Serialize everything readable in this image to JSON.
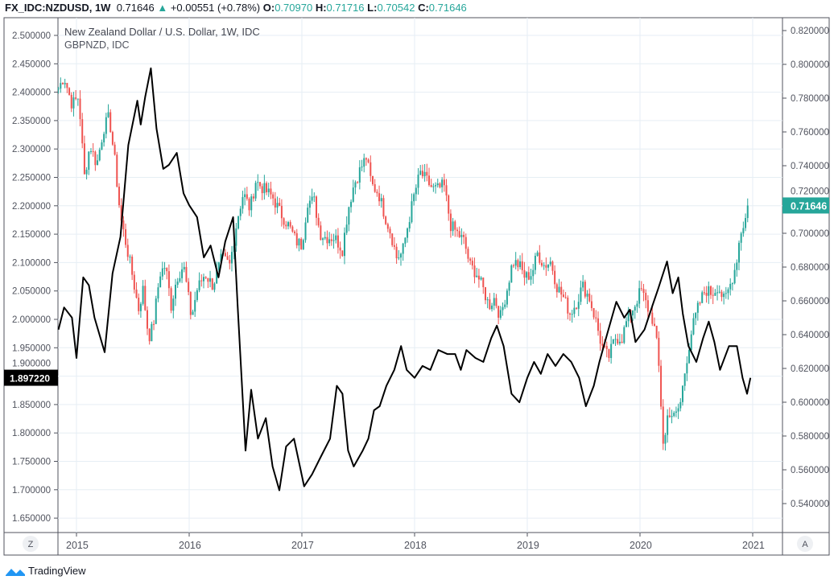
{
  "header": {
    "symbol": "FX_IDC:NZDUSD, 1W",
    "last": "0.71646",
    "change": "+0.00551 (+0.78%)",
    "o_label": "O:",
    "o": "0.70970",
    "h_label": "H:",
    "h": "0.71716",
    "l_label": "L:",
    "l": "0.70542",
    "c_label": "C:",
    "c": "0.71646"
  },
  "legend": {
    "main": "New Zealand Dollar / U.S. Dollar, 1W, IDC",
    "overlay": "GBPNZD, IDC"
  },
  "footer": {
    "brand": "TradingView",
    "z_button": "Z",
    "a_button": "A"
  },
  "colors": {
    "up": "#26a69a",
    "down": "#ef5350",
    "overlay_line": "#000000",
    "grid": "#e6eef4"
  },
  "chart_data": {
    "type": "candlestick+line",
    "x_ticks": [
      "2015",
      "2016",
      "2017",
      "2018",
      "2019",
      "2020",
      "2021"
    ],
    "left_axis": {
      "series": "GBPNZD",
      "range": [
        1.62,
        2.53
      ],
      "ticks": [
        "2.500000",
        "2.450000",
        "2.400000",
        "2.350000",
        "2.300000",
        "2.250000",
        "2.200000",
        "2.150000",
        "2.100000",
        "2.050000",
        "2.000000",
        "1.950000",
        "1.900000",
        "1.850000",
        "1.800000",
        "1.750000",
        "1.700000",
        "1.650000"
      ],
      "last_label": "1.897220",
      "last_value": 1.89722
    },
    "right_axis": {
      "series": "NZDUSD",
      "range": [
        0.532,
        0.826
      ],
      "ticks": [
        "0.820000",
        "0.800000",
        "0.780000",
        "0.760000",
        "0.740000",
        "0.720000",
        "0.700000",
        "0.680000",
        "0.660000",
        "0.640000",
        "0.620000",
        "0.600000",
        "0.580000",
        "0.560000",
        "0.540000"
      ],
      "last_label": "0.71646",
      "last_value": 0.71646
    },
    "gbpnzd": [
      [
        2014.84,
        1.982
      ],
      [
        2014.89,
        2.021
      ],
      [
        2014.96,
        2.003
      ],
      [
        2015.0,
        1.932
      ],
      [
        2015.06,
        2.074
      ],
      [
        2015.11,
        2.06
      ],
      [
        2015.16,
        2.003
      ],
      [
        2015.25,
        1.942
      ],
      [
        2015.32,
        2.081
      ],
      [
        2015.39,
        2.145
      ],
      [
        2015.46,
        2.307
      ],
      [
        2015.54,
        2.385
      ],
      [
        2015.57,
        2.343
      ],
      [
        2015.61,
        2.392
      ],
      [
        2015.66,
        2.442
      ],
      [
        2015.71,
        2.336
      ],
      [
        2015.77,
        2.265
      ],
      [
        2015.82,
        2.272
      ],
      [
        2015.89,
        2.293
      ],
      [
        2015.95,
        2.222
      ],
      [
        2016.0,
        2.201
      ],
      [
        2016.07,
        2.18
      ],
      [
        2016.13,
        2.109
      ],
      [
        2016.19,
        2.13
      ],
      [
        2016.26,
        2.074
      ],
      [
        2016.32,
        2.137
      ],
      [
        2016.39,
        2.18
      ],
      [
        2016.43,
        2.024
      ],
      [
        2016.5,
        1.769
      ],
      [
        2016.55,
        1.876
      ],
      [
        2016.61,
        1.79
      ],
      [
        2016.68,
        1.826
      ],
      [
        2016.74,
        1.741
      ],
      [
        2016.8,
        1.699
      ],
      [
        2016.86,
        1.776
      ],
      [
        2016.93,
        1.79
      ],
      [
        2016.96,
        1.762
      ],
      [
        2017.02,
        1.706
      ],
      [
        2017.09,
        1.727
      ],
      [
        2017.16,
        1.755
      ],
      [
        2017.25,
        1.79
      ],
      [
        2017.31,
        1.883
      ],
      [
        2017.36,
        1.869
      ],
      [
        2017.41,
        1.769
      ],
      [
        2017.46,
        1.741
      ],
      [
        2017.54,
        1.769
      ],
      [
        2017.59,
        1.79
      ],
      [
        2017.64,
        1.84
      ],
      [
        2017.69,
        1.847
      ],
      [
        2017.75,
        1.883
      ],
      [
        2017.82,
        1.911
      ],
      [
        2017.88,
        1.953
      ],
      [
        2017.93,
        1.911
      ],
      [
        2018.0,
        1.897
      ],
      [
        2018.07,
        1.918
      ],
      [
        2018.14,
        1.911
      ],
      [
        2018.21,
        1.946
      ],
      [
        2018.29,
        1.939
      ],
      [
        2018.36,
        1.939
      ],
      [
        2018.41,
        1.911
      ],
      [
        2018.46,
        1.946
      ],
      [
        2018.54,
        1.932
      ],
      [
        2018.61,
        1.925
      ],
      [
        2018.68,
        1.967
      ],
      [
        2018.73,
        1.989
      ],
      [
        2018.79,
        1.953
      ],
      [
        2018.86,
        1.869
      ],
      [
        2018.93,
        1.854
      ],
      [
        2019.0,
        1.897
      ],
      [
        2019.06,
        1.925
      ],
      [
        2019.12,
        1.904
      ],
      [
        2019.18,
        1.939
      ],
      [
        2019.25,
        1.918
      ],
      [
        2019.32,
        1.939
      ],
      [
        2019.39,
        1.925
      ],
      [
        2019.46,
        1.897
      ],
      [
        2019.52,
        1.847
      ],
      [
        2019.59,
        1.883
      ],
      [
        2019.64,
        1.925
      ],
      [
        2019.71,
        1.975
      ],
      [
        2019.79,
        2.031
      ],
      [
        2019.86,
        2.003
      ],
      [
        2019.91,
        2.017
      ],
      [
        2019.96,
        1.96
      ],
      [
        2020.04,
        1.982
      ],
      [
        2020.11,
        2.024
      ],
      [
        2020.16,
        2.053
      ],
      [
        2020.24,
        2.102
      ],
      [
        2020.29,
        2.046
      ],
      [
        2020.34,
        2.074
      ],
      [
        2020.38,
        2.01
      ],
      [
        2020.43,
        1.953
      ],
      [
        2020.5,
        1.925
      ],
      [
        2020.56,
        1.967
      ],
      [
        2020.61,
        1.996
      ],
      [
        2020.66,
        1.96
      ],
      [
        2020.71,
        1.911
      ],
      [
        2020.79,
        1.953
      ],
      [
        2020.86,
        1.953
      ],
      [
        2020.91,
        1.897
      ],
      [
        2020.95,
        1.869
      ],
      [
        2020.98,
        1.897
      ]
    ],
    "nzdusd_close": [
      [
        2014.84,
        0.7857
      ],
      [
        2014.89,
        0.7929
      ],
      [
        2014.96,
        0.7762
      ],
      [
        2015.02,
        0.781
      ],
      [
        2015.07,
        0.7334
      ],
      [
        2015.12,
        0.7524
      ],
      [
        2015.18,
        0.7405
      ],
      [
        2015.24,
        0.7619
      ],
      [
        2015.29,
        0.769
      ],
      [
        2015.34,
        0.7429
      ],
      [
        2015.39,
        0.7096
      ],
      [
        2015.45,
        0.6905
      ],
      [
        2015.5,
        0.6738
      ],
      [
        2015.55,
        0.6548
      ],
      [
        2015.59,
        0.6667
      ],
      [
        2015.64,
        0.6381
      ],
      [
        2015.68,
        0.6452
      ],
      [
        2015.74,
        0.6762
      ],
      [
        2015.79,
        0.681
      ],
      [
        2015.84,
        0.6571
      ],
      [
        2015.89,
        0.6738
      ],
      [
        2015.95,
        0.681
      ],
      [
        2016.02,
        0.65
      ],
      [
        2016.07,
        0.6667
      ],
      [
        2016.14,
        0.6762
      ],
      [
        2016.21,
        0.669
      ],
      [
        2016.29,
        0.6857
      ],
      [
        2016.36,
        0.681
      ],
      [
        2016.43,
        0.7096
      ],
      [
        2016.48,
        0.7238
      ],
      [
        2016.54,
        0.7143
      ],
      [
        2016.59,
        0.731
      ],
      [
        2016.66,
        0.7262
      ],
      [
        2016.74,
        0.7214
      ],
      [
        2016.81,
        0.7119
      ],
      [
        2016.88,
        0.7048
      ],
      [
        2016.95,
        0.6952
      ],
      [
        2017.0,
        0.6929
      ],
      [
        2017.05,
        0.719
      ],
      [
        2017.11,
        0.719
      ],
      [
        2017.16,
        0.7
      ],
      [
        2017.21,
        0.6976
      ],
      [
        2017.29,
        0.6976
      ],
      [
        2017.36,
        0.6905
      ],
      [
        2017.41,
        0.7143
      ],
      [
        2017.46,
        0.7286
      ],
      [
        2017.52,
        0.7381
      ],
      [
        2017.57,
        0.7452
      ],
      [
        2017.62,
        0.7286
      ],
      [
        2017.68,
        0.7238
      ],
      [
        2017.74,
        0.7096
      ],
      [
        2017.79,
        0.7
      ],
      [
        2017.84,
        0.6857
      ],
      [
        2017.89,
        0.6881
      ],
      [
        2017.94,
        0.7048
      ],
      [
        2018.0,
        0.7238
      ],
      [
        2018.05,
        0.7357
      ],
      [
        2018.11,
        0.731
      ],
      [
        2018.16,
        0.7262
      ],
      [
        2018.21,
        0.7262
      ],
      [
        2018.26,
        0.7286
      ],
      [
        2018.32,
        0.7048
      ],
      [
        2018.38,
        0.7
      ],
      [
        2018.44,
        0.6952
      ],
      [
        2018.49,
        0.681
      ],
      [
        2018.55,
        0.6762
      ],
      [
        2018.61,
        0.6667
      ],
      [
        2018.66,
        0.6571
      ],
      [
        2018.71,
        0.6619
      ],
      [
        2018.76,
        0.65
      ],
      [
        2018.82,
        0.6667
      ],
      [
        2018.87,
        0.6833
      ],
      [
        2018.93,
        0.681
      ],
      [
        2018.98,
        0.6738
      ],
      [
        2019.04,
        0.6762
      ],
      [
        2019.09,
        0.6881
      ],
      [
        2019.15,
        0.681
      ],
      [
        2019.21,
        0.6833
      ],
      [
        2019.26,
        0.669
      ],
      [
        2019.32,
        0.6619
      ],
      [
        2019.38,
        0.6524
      ],
      [
        2019.44,
        0.6595
      ],
      [
        2019.49,
        0.669
      ],
      [
        2019.55,
        0.6619
      ],
      [
        2019.61,
        0.6476
      ],
      [
        2019.66,
        0.6333
      ],
      [
        2019.72,
        0.6262
      ],
      [
        2019.78,
        0.6381
      ],
      [
        2019.84,
        0.6381
      ],
      [
        2019.89,
        0.65
      ],
      [
        2019.95,
        0.6571
      ],
      [
        2020.01,
        0.6667
      ],
      [
        2020.06,
        0.6571
      ],
      [
        2020.12,
        0.6476
      ],
      [
        2020.16,
        0.6286
      ],
      [
        2020.21,
        0.5715
      ],
      [
        2020.25,
        0.5953
      ],
      [
        2020.31,
        0.5905
      ],
      [
        2020.36,
        0.6
      ],
      [
        2020.41,
        0.6238
      ],
      [
        2020.46,
        0.6429
      ],
      [
        2020.52,
        0.6571
      ],
      [
        2020.58,
        0.6667
      ],
      [
        2020.64,
        0.6643
      ],
      [
        2020.69,
        0.669
      ],
      [
        2020.75,
        0.6595
      ],
      [
        2020.81,
        0.6714
      ],
      [
        2020.85,
        0.681
      ],
      [
        2020.89,
        0.7
      ],
      [
        2020.94,
        0.7096
      ],
      [
        2020.96,
        0.71646
      ]
    ]
  }
}
